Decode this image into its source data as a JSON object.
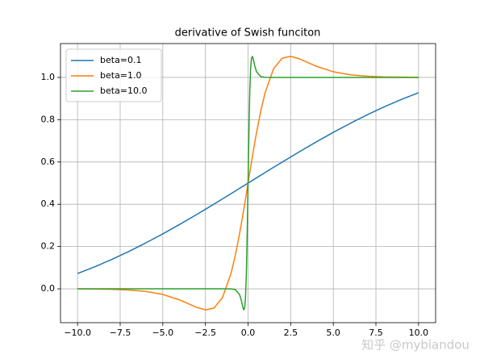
{
  "chart_data": {
    "type": "line",
    "title": "derivative of Swish funciton",
    "x": [
      -10,
      -9,
      -8,
      -7,
      -6,
      -5,
      -4,
      -3,
      -2.5,
      -2,
      -1.5,
      -1,
      -0.75,
      -0.5,
      -0.4,
      -0.3,
      -0.25,
      -0.2,
      -0.15,
      -0.1,
      -0.05,
      0,
      0.05,
      0.1,
      0.15,
      0.2,
      0.25,
      0.3,
      0.4,
      0.5,
      0.75,
      1,
      1.5,
      2,
      2.5,
      3,
      4,
      5,
      6,
      7,
      8,
      9,
      10
    ],
    "series": [
      {
        "name": "beta=0.1",
        "color": "#1f77b4",
        "values": [
          0.0723,
          0.1041,
          0.1389,
          0.1766,
          0.2171,
          0.26,
          0.3052,
          0.3522,
          0.3763,
          0.4007,
          0.4253,
          0.4501,
          0.4625,
          0.475,
          0.48,
          0.485,
          0.4875,
          0.49,
          0.4925,
          0.495,
          0.4975,
          0.5,
          0.5025,
          0.505,
          0.5075,
          0.51,
          0.5125,
          0.515,
          0.52,
          0.525,
          0.5375,
          0.5499,
          0.5747,
          0.5993,
          0.6237,
          0.6478,
          0.6948,
          0.74,
          0.7829,
          0.8234,
          0.8611,
          0.8959,
          0.9277
        ]
      },
      {
        "name": "beta=1.0",
        "color": "#ff7f0e",
        "values": [
          -0.0004,
          -0.001,
          -0.0023,
          -0.0055,
          -0.0123,
          -0.0266,
          -0.0527,
          -0.0881,
          -0.0994,
          -0.0908,
          -0.0413,
          0.0723,
          0.1574,
          0.26,
          0.3052,
          0.3522,
          0.3763,
          0.4007,
          0.4253,
          0.4501,
          0.475,
          0.5,
          0.525,
          0.5499,
          0.5747,
          0.5993,
          0.6237,
          0.6478,
          0.6948,
          0.74,
          0.8426,
          0.9277,
          1.0413,
          1.0908,
          1.0994,
          1.0881,
          1.0527,
          1.0266,
          1.0123,
          1.0055,
          1.0023,
          1.001,
          1.0004
        ]
      },
      {
        "name": "beta=10.0",
        "color": "#2ca02c",
        "values": [
          0,
          0,
          0,
          0,
          0,
          0,
          0,
          0,
          0,
          0,
          0,
          -0.0004,
          -0.0036,
          -0.0266,
          -0.0527,
          -0.0881,
          -0.0994,
          -0.0908,
          -0.0413,
          0.0723,
          0.26,
          0.5,
          0.74,
          0.9277,
          1.0413,
          1.0908,
          1.0994,
          1.0881,
          1.0527,
          1.0266,
          1.0036,
          1.0004,
          1,
          1,
          1,
          1,
          1,
          1,
          1,
          1,
          1,
          1,
          1
        ]
      }
    ],
    "xlim": [
      -11,
      11
    ],
    "xticks": [
      {
        "value": -10,
        "label": "−10.0"
      },
      {
        "value": -7.5,
        "label": "−7.5"
      },
      {
        "value": -5,
        "label": "−5.0"
      },
      {
        "value": -2.5,
        "label": "−2.5"
      },
      {
        "value": 0,
        "label": "0.0"
      },
      {
        "value": 2.5,
        "label": "2.5"
      },
      {
        "value": 5,
        "label": "5.0"
      },
      {
        "value": 7.5,
        "label": "7.5"
      },
      {
        "value": 10,
        "label": "10.0"
      }
    ],
    "ylim": [
      -0.16,
      1.16
    ],
    "yticks": [
      {
        "value": 0,
        "label": "0.0"
      },
      0.2,
      0.4,
      0.6,
      0.8,
      {
        "value": 1,
        "label": "1.0"
      }
    ],
    "grid": true,
    "legend": "upper-left",
    "watermark": "知乎 @mybiandou"
  }
}
